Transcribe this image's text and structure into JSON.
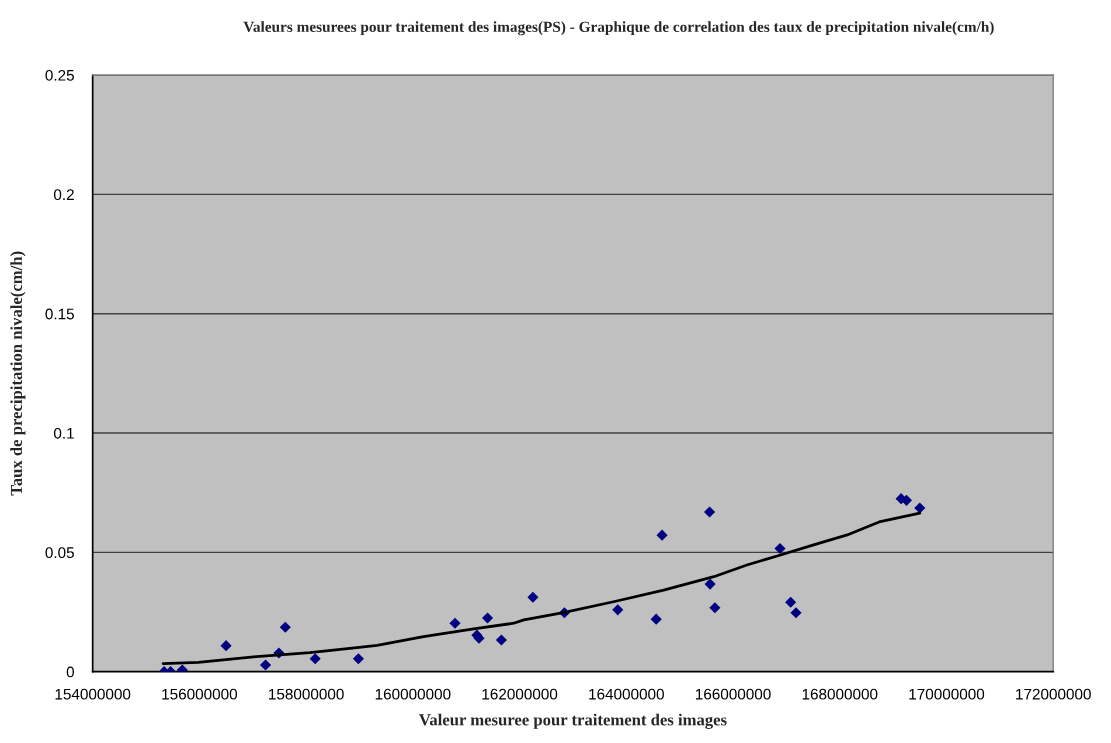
{
  "chart_data": {
    "type": "scatter",
    "title": "Valeurs mesurees pour traitement des images(PS) - Graphique de correlation des taux de precipitation nivale(cm/h)",
    "xlabel": "Valeur mesuree pour traitement des images",
    "ylabel": "Taux de precipitation nivale(cm/h)",
    "series": [
      {
        "type": "scatter",
        "color": "#000080",
        "marker": "diamond",
        "x": [
          155340000,
          155460000,
          155680000,
          156500000,
          157240000,
          157490000,
          157610000,
          158170000,
          158980000,
          160790000,
          161200000,
          161240000,
          161400000,
          161660000,
          162250000,
          162840000,
          163840000,
          164560000,
          164670000,
          165560000,
          165570000,
          165660000,
          166880000,
          167080000,
          167180000,
          169150000,
          169250000,
          169500000
        ],
        "values": [
          0.0,
          0.0,
          0.0007,
          0.0109,
          0.0028,
          0.0078,
          0.0186,
          0.0054,
          0.0054,
          0.0203,
          0.0153,
          0.014,
          0.0225,
          0.0133,
          0.0312,
          0.0247,
          0.0259,
          0.022,
          0.0572,
          0.0669,
          0.0367,
          0.0268,
          0.0516,
          0.0291,
          0.0247,
          0.0725,
          0.0718,
          0.0686
        ]
      },
      {
        "type": "line",
        "color": "#000000",
        "line_style": "solid",
        "x": [
          155320000,
          155980000,
          157070000,
          158070000,
          158950000,
          159330000,
          160200000,
          161140000,
          161890000,
          162080000,
          162820000,
          163760000,
          164700000,
          165640000,
          166260000,
          166890000,
          167510000,
          168140000,
          168760000,
          169500000
        ],
        "values": [
          0.0034,
          0.0039,
          0.0063,
          0.008,
          0.0101,
          0.011,
          0.0147,
          0.0179,
          0.0203,
          0.0217,
          0.0247,
          0.0293,
          0.0342,
          0.0398,
          0.0447,
          0.0489,
          0.0531,
          0.0573,
          0.0629,
          0.0664
        ]
      }
    ],
    "xlim": [
      154000000,
      172000000
    ],
    "xticks": [
      154000000,
      156000000,
      158000000,
      160000000,
      162000000,
      164000000,
      166000000,
      168000000,
      170000000,
      172000000
    ],
    "ylim": [
      0,
      0.25
    ],
    "yticks": [
      0,
      0.05,
      {
        "value": 0.1,
        "label": "0.1"
      },
      0.15,
      {
        "value": 0.2,
        "label": "0.2"
      },
      0.25
    ],
    "grid": "y",
    "legend": false
  }
}
